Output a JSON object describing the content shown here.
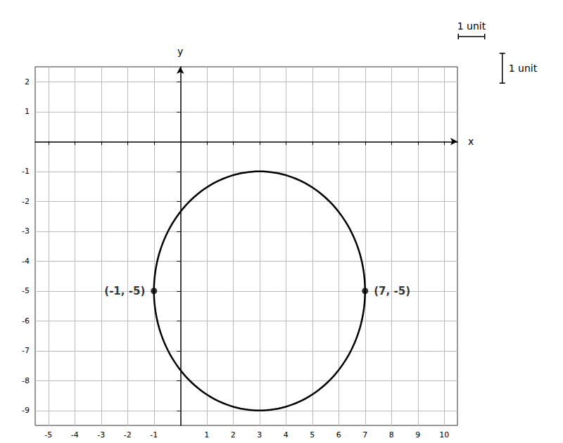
{
  "chart_data": {
    "type": "scatter",
    "xlabel": "x",
    "ylabel": "y",
    "x": [
      -1,
      7
    ],
    "values": [
      -5,
      -5
    ],
    "value_labels": [
      "(-1, -5)",
      "(7, -5)"
    ],
    "data_labels": true,
    "color": "#000000",
    "circle": {
      "center": [
        3,
        -5
      ],
      "radius": 4
    },
    "xlim": [
      -5.5,
      10.5
    ],
    "ylim": [
      -9.5,
      2.5
    ],
    "xticks": [
      -5,
      -4,
      -3,
      -2,
      -1,
      1,
      2,
      3,
      4,
      5,
      6,
      7,
      8,
      9,
      10
    ],
    "yticks": [
      -9,
      -8,
      -7,
      -6,
      -5,
      -4,
      -3,
      -2,
      -1,
      1,
      2
    ],
    "grid": true,
    "annotations": [
      "1 unit",
      "1 unit"
    ]
  }
}
